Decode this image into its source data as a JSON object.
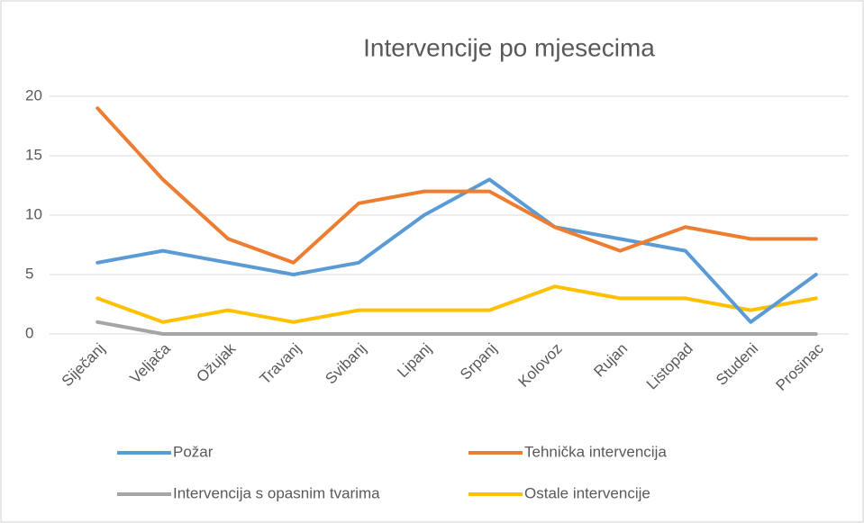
{
  "chart_data": {
    "type": "line",
    "title": "Intervencije po mjesecima",
    "categories": [
      "Siječanj",
      "Veljača",
      "Ožujak",
      "Travanj",
      "Svibanj",
      "Lipanj",
      "Srpanj",
      "Kolovoz",
      "Rujan",
      "Listopad",
      "Studeni",
      "Prosinac"
    ],
    "series": [
      {
        "name": "Požar",
        "color": "#5b9bd5",
        "values": [
          6,
          7,
          6,
          5,
          6,
          10,
          13,
          9,
          8,
          7,
          1,
          5
        ]
      },
      {
        "name": "Tehnička intervencija",
        "color": "#ed7d31",
        "values": [
          19,
          13,
          8,
          6,
          11,
          12,
          12,
          9,
          7,
          9,
          8,
          8
        ]
      },
      {
        "name": "Intervencija s opasnim tvarima",
        "color": "#a5a5a5",
        "values": [
          1,
          0,
          0,
          0,
          0,
          0,
          0,
          0,
          0,
          0,
          0,
          0
        ]
      },
      {
        "name": "Ostale intervencije",
        "color": "#ffc000",
        "values": [
          3,
          1,
          2,
          1,
          2,
          2,
          2,
          4,
          3,
          3,
          2,
          3
        ]
      }
    ],
    "ylim": [
      0,
      20
    ],
    "yticks": [
      0,
      5,
      10,
      15,
      20
    ],
    "grid": true,
    "legend": "bottom"
  }
}
